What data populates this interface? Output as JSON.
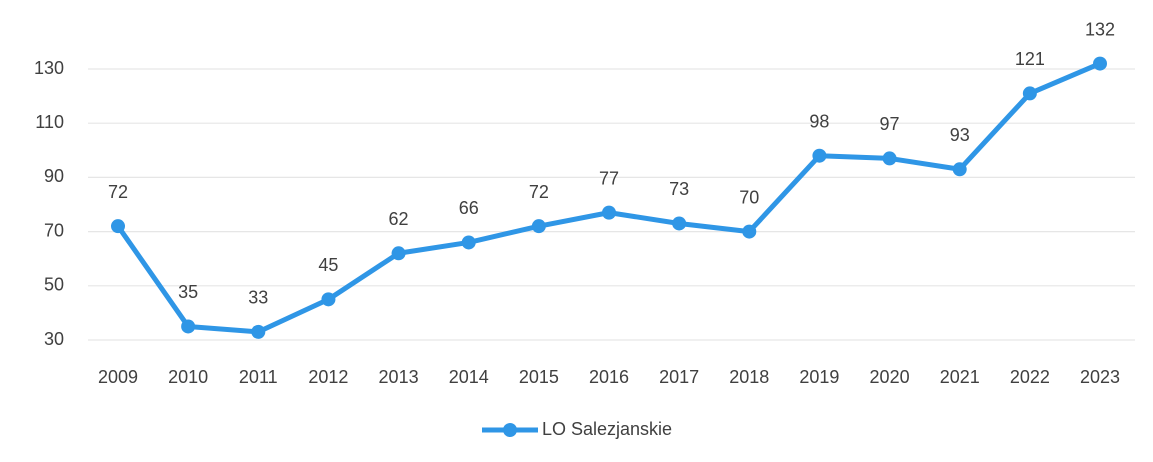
{
  "chart_data": {
    "type": "line",
    "categories": [
      "2009",
      "2010",
      "2011",
      "2012",
      "2013",
      "2014",
      "2015",
      "2016",
      "2017",
      "2018",
      "2019",
      "2020",
      "2021",
      "2022",
      "2023"
    ],
    "series": [
      {
        "name": "LO Salezjanskie",
        "color": "#2f96e6",
        "values": [
          72,
          35,
          33,
          45,
          62,
          66,
          72,
          77,
          73,
          70,
          98,
          97,
          93,
          121,
          132
        ]
      }
    ],
    "ylim": [
      30,
      140
    ],
    "yticks": [
      30,
      50,
      70,
      90,
      110,
      130
    ],
    "grid": true,
    "legend": "bottom"
  }
}
